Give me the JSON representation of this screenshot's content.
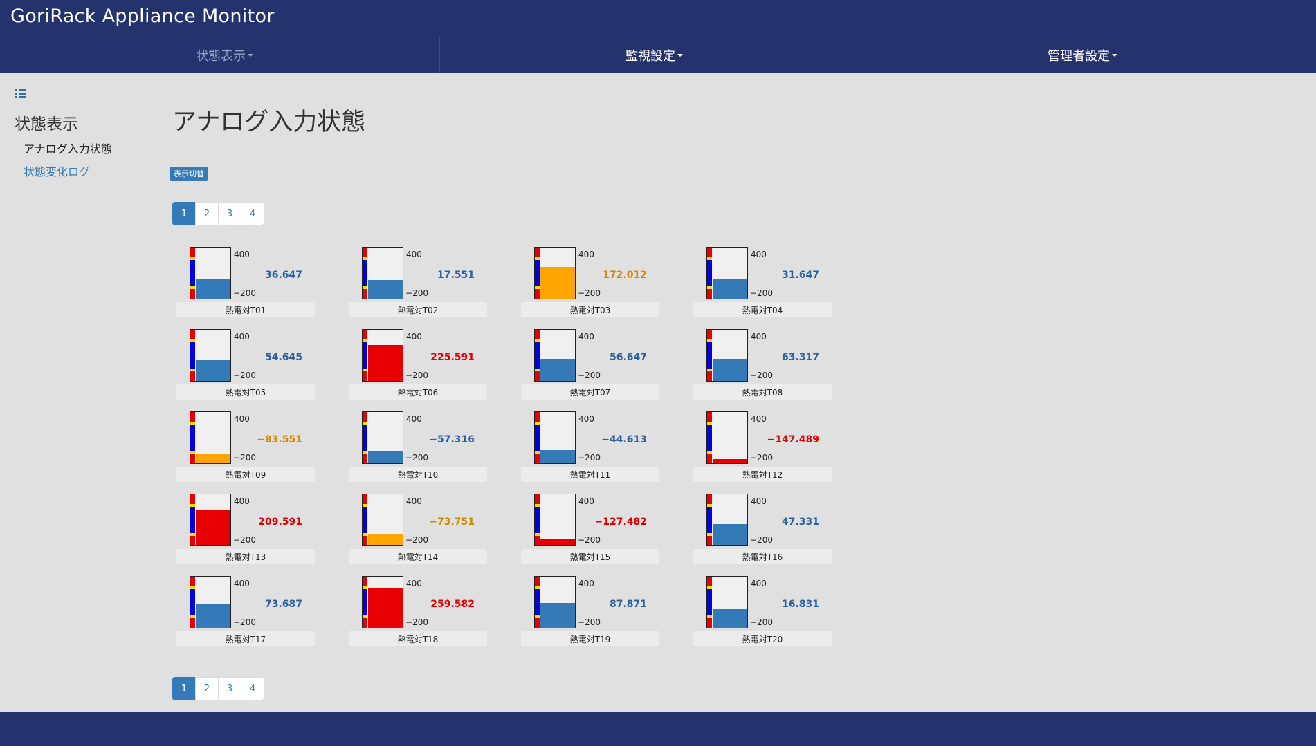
{
  "app": {
    "title": "GoriRack Appliance Monitor"
  },
  "nav": {
    "status": "状態表示",
    "monitor": "監視設定",
    "admin": "管理者設定"
  },
  "sidebar": {
    "icon": "list-icon",
    "heading": "状態表示",
    "items": [
      {
        "label": "アナログ入力状態",
        "active": true
      },
      {
        "label": "状態変化ログ",
        "active": false
      }
    ]
  },
  "main": {
    "title": "アナログ入力状態",
    "toggle_label": "表示切替"
  },
  "pagination": {
    "pages": [
      "1",
      "2",
      "3",
      "4"
    ],
    "current": "1"
  },
  "gauge_range": {
    "max": "400",
    "min": "−200",
    "max_value": 400,
    "min_value": -200
  },
  "colors": {
    "normal": "#337ab7",
    "warning": "#ffa500",
    "alarm": "#e80000",
    "warning_text": "#cf8a00",
    "alarm_text": "#e00000",
    "normal_text": "#2b5fa0"
  },
  "sensors": [
    {
      "name": "熱電対T01",
      "value": "36.647",
      "numeric": 36.647,
      "status": "normal"
    },
    {
      "name": "熱電対T02",
      "value": "17.551",
      "numeric": 17.551,
      "status": "normal"
    },
    {
      "name": "熱電対T03",
      "value": "172.012",
      "numeric": 172.012,
      "status": "warning"
    },
    {
      "name": "熱電対T04",
      "value": "31.647",
      "numeric": 31.647,
      "status": "normal"
    },
    {
      "name": "熱電対T05",
      "value": "54.645",
      "numeric": 54.645,
      "status": "normal"
    },
    {
      "name": "熱電対T06",
      "value": "225.591",
      "numeric": 225.591,
      "status": "alarm"
    },
    {
      "name": "熱電対T07",
      "value": "56.647",
      "numeric": 56.647,
      "status": "normal"
    },
    {
      "name": "熱電対T08",
      "value": "63.317",
      "numeric": 63.317,
      "status": "normal"
    },
    {
      "name": "熱電対T09",
      "value": "−83.551",
      "numeric": -83.551,
      "status": "warning"
    },
    {
      "name": "熱電対T10",
      "value": "−57.316",
      "numeric": -57.316,
      "status": "normal"
    },
    {
      "name": "熱電対T11",
      "value": "−44.613",
      "numeric": -44.613,
      "status": "normal"
    },
    {
      "name": "熱電対T12",
      "value": "−147.489",
      "numeric": -147.489,
      "status": "alarm"
    },
    {
      "name": "熱電対T13",
      "value": "209.591",
      "numeric": 209.591,
      "status": "alarm"
    },
    {
      "name": "熱電対T14",
      "value": "−73.751",
      "numeric": -73.751,
      "status": "warning"
    },
    {
      "name": "熱電対T15",
      "value": "−127.482",
      "numeric": -127.482,
      "status": "alarm"
    },
    {
      "name": "熱電対T16",
      "value": "47.331",
      "numeric": 47.331,
      "status": "normal"
    },
    {
      "name": "熱電対T17",
      "value": "73.687",
      "numeric": 73.687,
      "status": "normal"
    },
    {
      "name": "熱電対T18",
      "value": "259.582",
      "numeric": 259.582,
      "status": "alarm"
    },
    {
      "name": "熱電対T19",
      "value": "87.871",
      "numeric": 87.871,
      "status": "normal"
    },
    {
      "name": "熱電対T20",
      "value": "16.831",
      "numeric": 16.831,
      "status": "normal"
    }
  ]
}
